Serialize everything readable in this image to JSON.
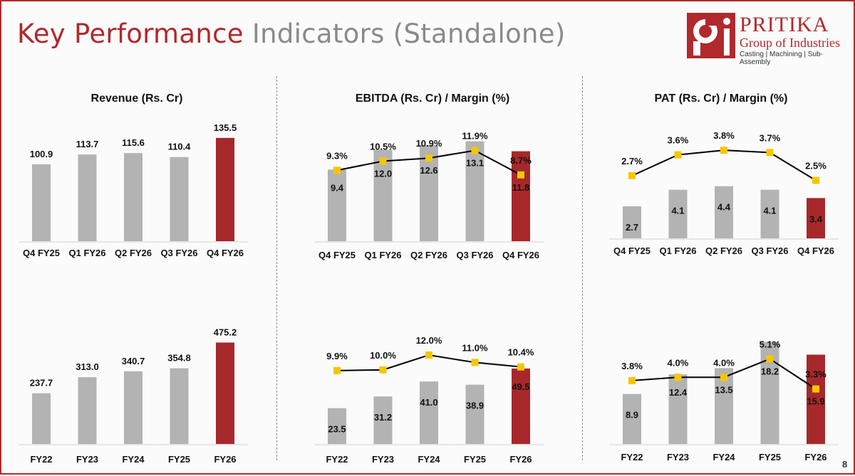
{
  "title": {
    "part1": "Key Performance",
    "part2": "Indicators (Standalone)"
  },
  "logo": {
    "name": "PRITIKA",
    "subtitle": "Group of Industries",
    "tagline": "Casting | Machining | Sub- Assembly"
  },
  "page_number": "8",
  "colors": {
    "gray_bar": "#b3b3b3",
    "red_bar": "#a7282b",
    "marker": "#f7c600",
    "line": "#000000",
    "title_red": "#b0292d"
  },
  "chart_data": [
    {
      "id": "revenue_q",
      "type": "bar",
      "title": "Revenue (Rs. Cr)",
      "categories": [
        "Q4 FY25",
        "Q1 FY26",
        "Q2 FY26",
        "Q3 FY26",
        "Q4 FY26"
      ],
      "values": [
        100.9,
        113.7,
        115.6,
        110.4,
        135.5
      ],
      "value_labels": [
        "100.9",
        "113.7",
        "115.6",
        "110.4",
        "135.5"
      ],
      "highlight_index": 4,
      "ylim": [
        0,
        140
      ]
    },
    {
      "id": "ebitda_q",
      "type": "bar",
      "title": "EBITDA (Rs. Cr) / Margin (%)",
      "categories": [
        "Q4 FY25",
        "Q1 FY26",
        "Q2 FY26",
        "Q3 FY26",
        "Q4 FY26"
      ],
      "values": [
        9.4,
        12.0,
        12.6,
        13.1,
        11.8
      ],
      "value_labels": [
        "9.4",
        "12.0",
        "12.6",
        "13.1",
        "11.8"
      ],
      "margin": [
        9.3,
        10.5,
        10.9,
        11.9,
        8.7
      ],
      "margin_labels": [
        "9.3%",
        "10.5%",
        "10.9%",
        "11.9%",
        "8.7%"
      ],
      "highlight_index": 4,
      "ylim": [
        0,
        14
      ],
      "margin_ylim": [
        0,
        14
      ]
    },
    {
      "id": "pat_q",
      "type": "bar",
      "title": "PAT (Rs. Cr) / Margin (%)",
      "categories": [
        "Q4 FY25",
        "Q1 FY26",
        "Q2 FY26",
        "Q3 FY26",
        "Q4 FY26"
      ],
      "values": [
        2.7,
        4.1,
        4.4,
        4.1,
        3.4
      ],
      "value_labels": [
        "2.7",
        "4.1",
        "4.4",
        "4.1",
        "3.4"
      ],
      "margin": [
        2.7,
        3.6,
        3.8,
        3.7,
        2.5
      ],
      "margin_labels": [
        "2.7%",
        "3.6%",
        "3.8%",
        "3.7%",
        "2.5%"
      ],
      "highlight_index": 4,
      "ylim": [
        0,
        9
      ],
      "margin_ylim": [
        0,
        4.6
      ]
    },
    {
      "id": "revenue_fy",
      "type": "bar",
      "categories": [
        "FY22",
        "FY23",
        "FY24",
        "FY25",
        "FY26"
      ],
      "values": [
        237.7,
        313.0,
        340.7,
        354.8,
        475.2
      ],
      "value_labels": [
        "237.7",
        "313.0",
        "340.7",
        "354.8",
        "475.2"
      ],
      "highlight_index": 4,
      "ylim": [
        0,
        500
      ]
    },
    {
      "id": "ebitda_fy",
      "type": "bar",
      "categories": [
        "FY22",
        "FY23",
        "FY24",
        "FY25",
        "FY26"
      ],
      "values": [
        23.5,
        31.2,
        41.0,
        38.9,
        49.5
      ],
      "value_labels": [
        "23.5",
        "31.2",
        "41.0",
        "38.9",
        "49.5"
      ],
      "margin": [
        9.9,
        10.0,
        12.0,
        11.0,
        10.4
      ],
      "margin_labels": [
        "9.9%",
        "10.0%",
        "12.0%",
        "11.0%",
        "10.4%"
      ],
      "highlight_index": 4,
      "ylim": [
        0,
        70
      ],
      "margin_ylim": [
        0,
        14.4
      ]
    },
    {
      "id": "pat_fy",
      "type": "bar",
      "categories": [
        "FY22",
        "FY23",
        "FY24",
        "FY25",
        "FY26"
      ],
      "values": [
        8.9,
        12.4,
        13.5,
        18.2,
        15.9
      ],
      "value_labels": [
        "8.9",
        "12.4",
        "13.5",
        "18.2",
        "15.9"
      ],
      "margin": [
        3.8,
        4.0,
        4.0,
        5.1,
        3.3
      ],
      "margin_labels": [
        "3.8%",
        "4.0%",
        "4.0%",
        "5.1%",
        "3.3%"
      ],
      "highlight_index": 4,
      "ylim": [
        0,
        19
      ],
      "margin_ylim": [
        0,
        6.4
      ]
    }
  ]
}
